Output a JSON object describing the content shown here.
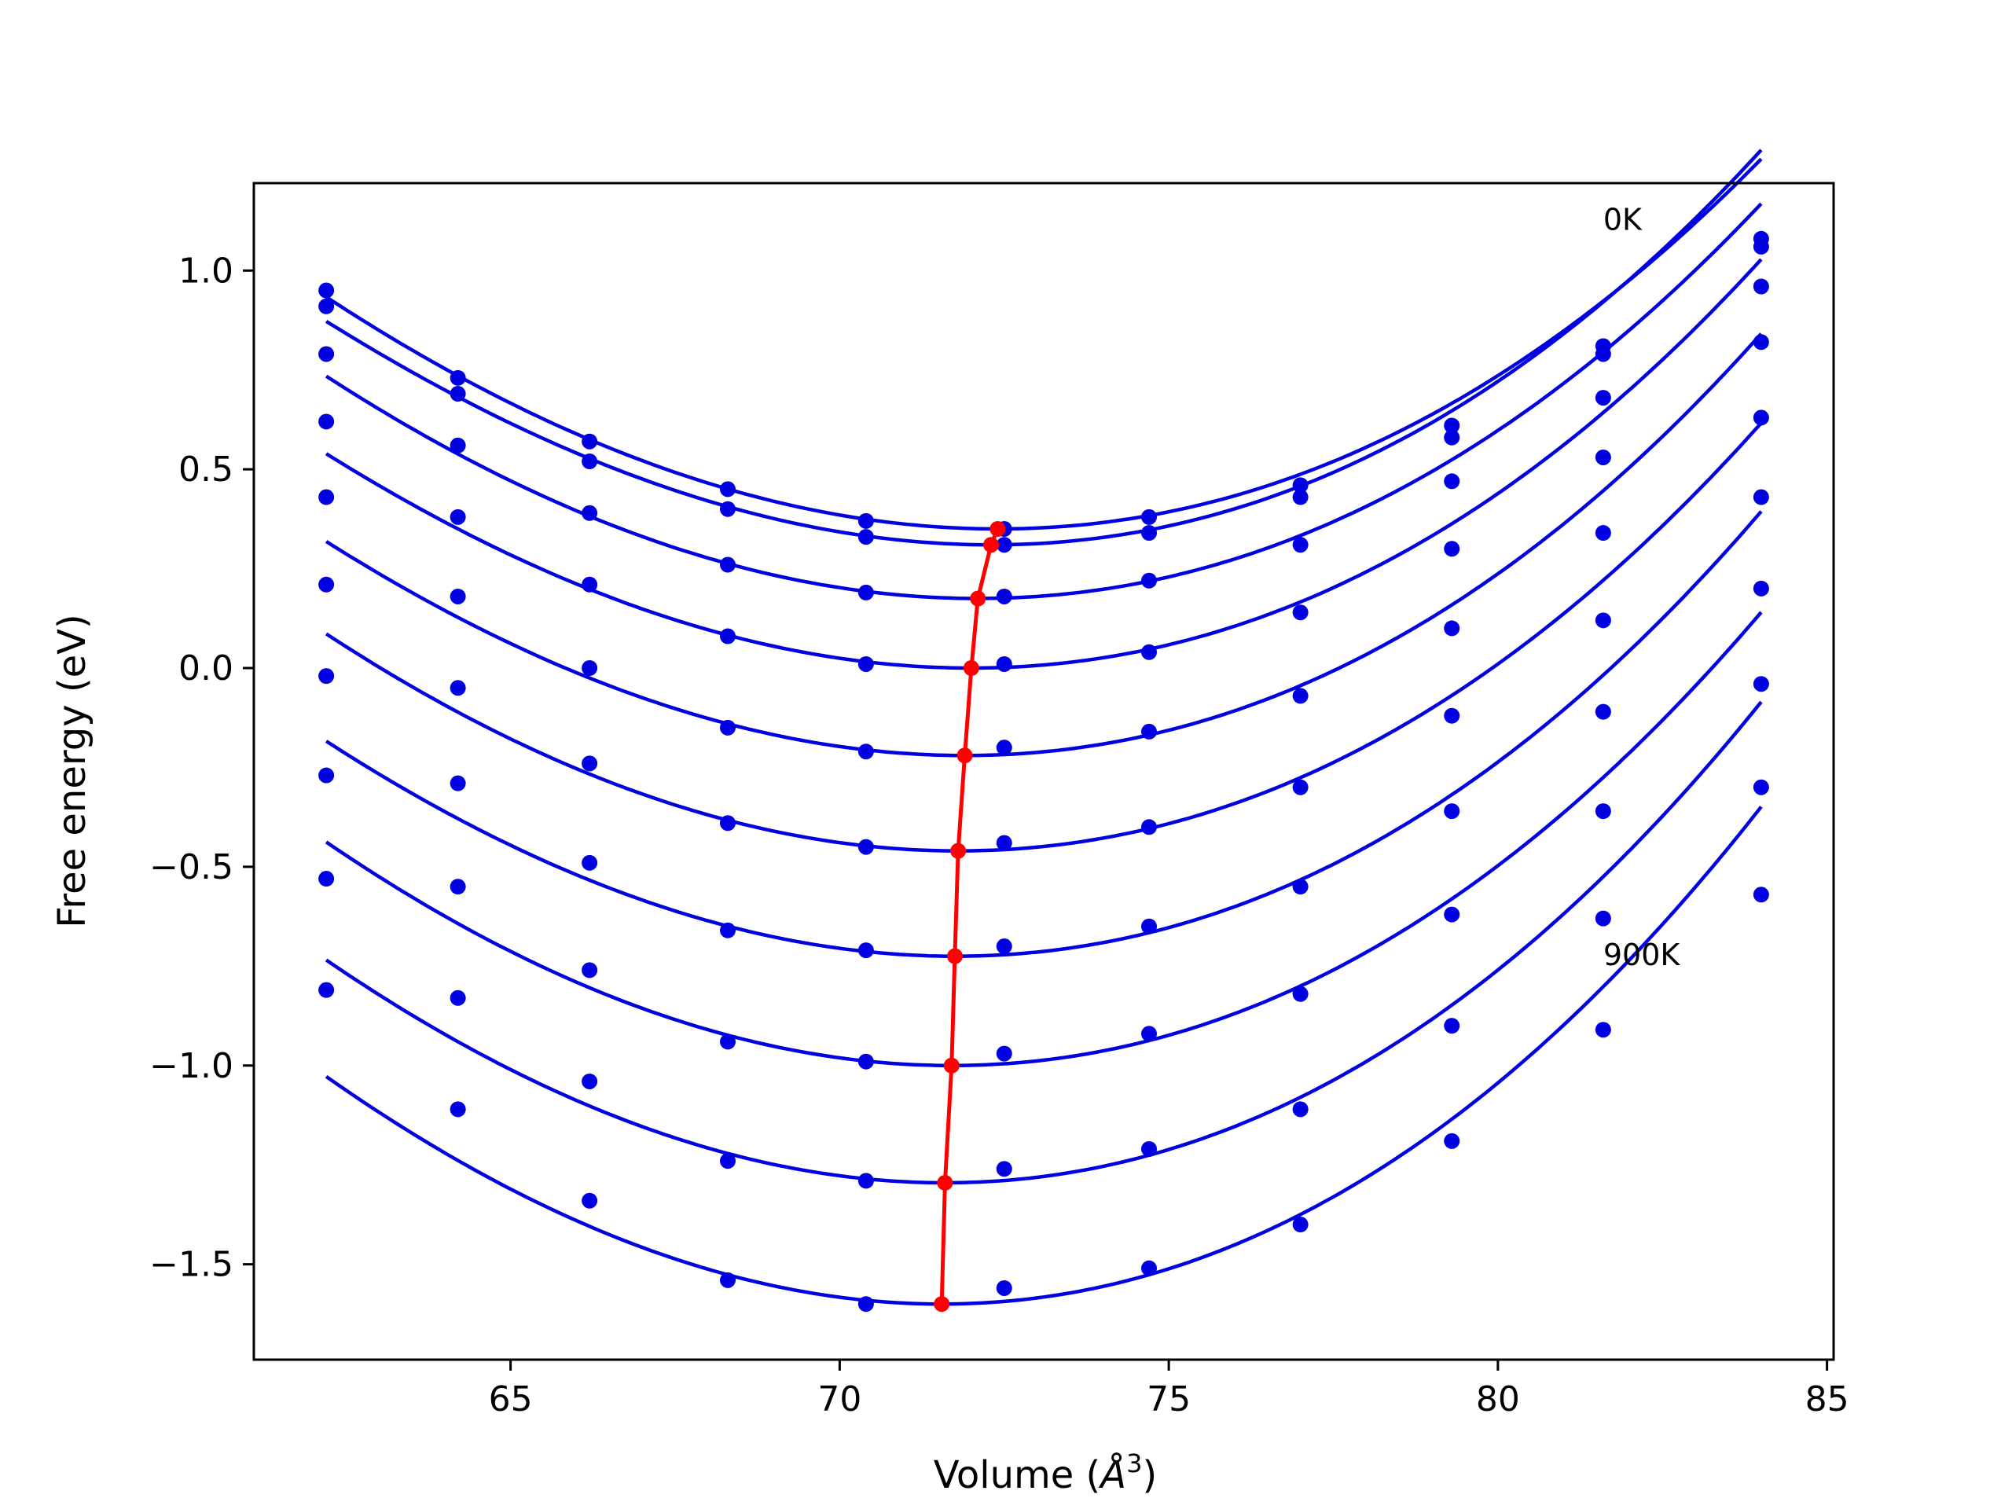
{
  "chart_data": {
    "type": "line",
    "title": "",
    "xlabel_main": "Volume (",
    "xlabel_unit": "Å",
    "xlabel_exp": "3",
    "xlabel_close": ")",
    "ylabel": "Free energy (eV)",
    "xlim": [
      61.1,
      85.1
    ],
    "ylim": [
      -1.74,
      1.22
    ],
    "xticks": [
      "65",
      "70",
      "75",
      "80",
      "85"
    ],
    "yticks": [
      "1.0",
      "0.5",
      "0.0",
      "−0.5",
      "−1.0",
      "−1.5"
    ],
    "xtick_values": [
      65,
      70,
      75,
      80,
      85
    ],
    "ytick_values": [
      1.0,
      0.5,
      0.0,
      -0.5,
      -1.0,
      -1.5
    ],
    "annotations": [
      {
        "text": "0K",
        "x": 81.6,
        "y": 1.13
      },
      {
        "text": "900K",
        "x": 81.6,
        "y": -0.72
      }
    ],
    "grid": false,
    "legend": "none",
    "colors": {
      "curves": "#0000e0",
      "minimum_line": "#ff0000",
      "axes": "#000000"
    },
    "x": [
      62.2,
      64.2,
      66.2,
      68.3,
      70.4,
      72.5,
      74.7,
      77.0,
      79.3,
      81.6,
      84.0
    ],
    "series": [
      {
        "values": [
          0.95,
          0.73,
          0.57,
          0.45,
          0.37,
          0.35,
          0.38,
          0.46,
          0.61,
          0.81,
          1.08
        ],
        "fit": {
          "vmin": 72.4,
          "emin": 0.35,
          "a": 0.00622,
          "b": 6e-05
        }
      },
      {
        "values": [
          0.91,
          0.69,
          0.52,
          0.4,
          0.33,
          0.31,
          0.34,
          0.43,
          0.58,
          0.79,
          1.06
        ],
        "fit": {
          "vmin": 72.3,
          "emin": 0.31,
          "a": 0.00632,
          "b": 8e-05
        }
      },
      {
        "values": [
          0.79,
          0.56,
          0.39,
          0.26,
          0.19,
          0.18,
          0.22,
          0.31,
          0.47,
          0.68,
          0.96
        ],
        "fit": {
          "vmin": 72.1,
          "emin": 0.175,
          "a": 0.0063,
          "b": 6e-05
        }
      },
      {
        "values": [
          0.62,
          0.38,
          0.21,
          0.08,
          0.01,
          0.01,
          0.04,
          0.14,
          0.3,
          0.53,
          0.82
        ],
        "fit": {
          "vmin": 72.0,
          "emin": 0.0,
          "a": 0.0063,
          "b": 7e-05
        }
      },
      {
        "values": [
          0.43,
          0.18,
          0.0,
          -0.15,
          -0.21,
          -0.2,
          -0.16,
          -0.07,
          0.1,
          0.34,
          0.63
        ],
        "fit": {
          "vmin": 71.9,
          "emin": -0.22,
          "a": 0.0064,
          "b": 7e-05
        }
      },
      {
        "values": [
          0.21,
          -0.05,
          -0.24,
          -0.39,
          -0.45,
          -0.44,
          -0.4,
          -0.3,
          -0.12,
          0.12,
          0.43
        ],
        "fit": {
          "vmin": 71.8,
          "emin": -0.46,
          "a": 0.0065,
          "b": 6e-05
        }
      },
      {
        "values": [
          -0.02,
          -0.29,
          -0.49,
          -0.66,
          -0.71,
          -0.7,
          -0.65,
          -0.55,
          -0.36,
          -0.11,
          0.2
        ],
        "fit": {
          "vmin": 71.75,
          "emin": -0.725,
          "a": 0.0066,
          "b": 7e-05
        }
      },
      {
        "values": [
          -0.27,
          -0.55,
          -0.76,
          -0.94,
          -0.99,
          -0.97,
          -0.92,
          -0.82,
          -0.62,
          -0.36,
          -0.04
        ],
        "fit": {
          "vmin": 71.7,
          "emin": -1.0,
          "a": 0.0068,
          "b": 6e-05
        }
      },
      {
        "values": [
          -0.53,
          -0.83,
          -1.04,
          -1.24,
          -1.29,
          -1.26,
          -1.21,
          -1.11,
          -0.9,
          -0.63,
          -0.3
        ],
        "fit": {
          "vmin": 71.6,
          "emin": -1.295,
          "a": 0.007,
          "b": 7e-05
        }
      },
      {
        "values": [
          -0.81,
          -1.11,
          -1.34,
          -1.54,
          -1.6,
          -1.56,
          -1.51,
          -1.4,
          -1.19,
          -0.91,
          -0.57
        ],
        "fit": {
          "vmin": 71.55,
          "emin": -1.6,
          "a": 0.0072,
          "b": 7e-05
        }
      }
    ],
    "minimum_line": {
      "x": [
        72.4,
        72.3,
        72.1,
        72.0,
        71.9,
        71.8,
        71.75,
        71.7,
        71.6,
        71.55
      ],
      "y": [
        0.35,
        0.31,
        0.175,
        0.0,
        -0.22,
        -0.46,
        -0.725,
        -1.0,
        -1.295,
        -1.6
      ]
    }
  }
}
